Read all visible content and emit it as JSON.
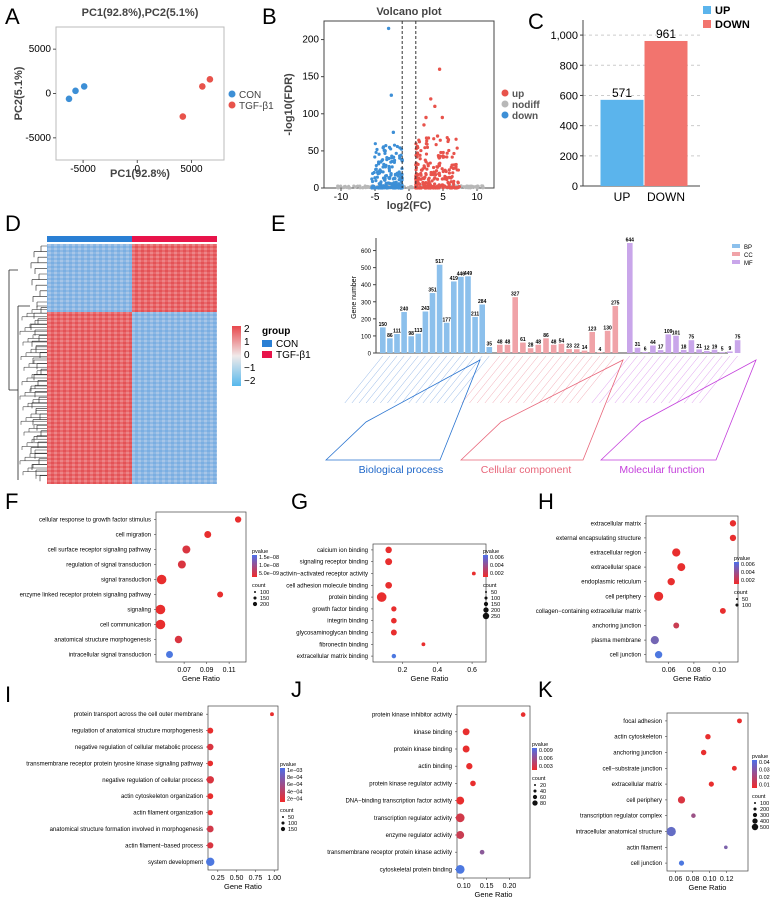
{
  "panels": {
    "A": "A",
    "B": "B",
    "C": "C",
    "D": "D",
    "E": "E",
    "F": "F",
    "G": "G",
    "H": "H",
    "I": "I",
    "J": "J",
    "K": "K"
  },
  "colors": {
    "red": "#e8312e",
    "blue": "#2a7fd4",
    "pca_red": "#e8534b",
    "pca_blue": "#3d8fd6",
    "up_bar": "#5bb4ec",
    "down_bar": "#f2746e",
    "heat_red": "#e85a5e",
    "heat_blue": "#7fb0e0",
    "bp": "#8cc0ec",
    "cc": "#f0a3a8",
    "mf": "#c9a6ea",
    "grey": "#b8b8b8"
  },
  "chart_data": [
    {
      "id": "A",
      "type": "scatter",
      "title": "PC1(92.8%),PC2(5.1%)",
      "xlabel": "PC1(92.8%)",
      "ylabel": "PC2(5.1%)",
      "xlim": [
        -7500,
        8000
      ],
      "ylim": [
        -7500,
        7500
      ],
      "xticks": [
        -5000,
        0,
        5000
      ],
      "xtick_labels": [
        "-5000",
        "0",
        "5000"
      ],
      "yticks": [
        -5000,
        0,
        5000
      ],
      "ytick_labels": [
        "-5000",
        "0",
        "5000"
      ],
      "series": [
        {
          "name": "CON",
          "color": "#3d8fd6",
          "points": [
            [
              -6300,
              -600
            ],
            [
              -5700,
              300
            ],
            [
              -4900,
              800
            ]
          ]
        },
        {
          "name": "TGF-β1",
          "color": "#e8534b",
          "points": [
            [
              4200,
              -2600
            ],
            [
              6000,
              800
            ],
            [
              6700,
              1600
            ]
          ]
        }
      ],
      "legend": [
        "CON",
        "TGF-β1"
      ]
    },
    {
      "id": "B",
      "type": "scatter",
      "title": "Volcano plot",
      "xlabel": "log2(FC)",
      "ylabel": "-log10(FDR)",
      "xlim": [
        -12.5,
        12.5
      ],
      "ylim": [
        0,
        225
      ],
      "xticks": [
        -10,
        -5,
        0,
        5,
        10
      ],
      "xtick_labels": [
        "-10",
        "-5",
        "0",
        "5",
        "10"
      ],
      "yticks": [
        0,
        50,
        100,
        150,
        200
      ],
      "ytick_labels": [
        "0",
        "50",
        "100",
        "150",
        "200"
      ],
      "thresholds_x": [
        -1,
        1
      ],
      "highlight_up": [
        [
          4.5,
          160
        ],
        [
          3.2,
          120
        ],
        [
          3.8,
          110
        ],
        [
          2.5,
          95
        ],
        [
          4.9,
          95
        ],
        [
          2.2,
          85
        ],
        [
          5.8,
          65
        ],
        [
          4.2,
          70
        ]
      ],
      "highlight_down": [
        [
          -3,
          215
        ],
        [
          -2.6,
          125
        ],
        [
          -2.3,
          75
        ],
        [
          -3.5,
          50
        ]
      ],
      "legend": [
        "up",
        "nodiff",
        "down"
      ]
    },
    {
      "id": "C",
      "type": "bar",
      "categories": [
        "UP",
        "DOWN"
      ],
      "values": [
        571,
        961
      ],
      "value_labels": [
        "571",
        "961"
      ],
      "ylim": [
        0,
        1100
      ],
      "yticks": [
        0,
        200,
        400,
        600,
        800,
        1000
      ],
      "ytick_labels": [
        "0",
        "200",
        "400",
        "600",
        "800",
        "1,000"
      ],
      "legend": [
        "UP",
        "DOWN"
      ]
    },
    {
      "id": "D",
      "type": "heatmap",
      "legend_title": "group",
      "groups": [
        "CON",
        "TGF-β1"
      ],
      "scale_ticks": [
        "2",
        "1",
        "0",
        "−1",
        "−2"
      ]
    },
    {
      "id": "E",
      "type": "bar",
      "ylabel": "Gene number",
      "ylim": [
        0,
        650
      ],
      "yticks": [
        0,
        100,
        200,
        300,
        400,
        500,
        600
      ],
      "ytick_labels": [
        "0",
        "100",
        "200",
        "300",
        "400",
        "500",
        "600"
      ],
      "legend": [
        "BP",
        "CC",
        "MF"
      ],
      "groups": [
        "Biological process",
        "Cellular component",
        "Molecular function"
      ],
      "series": [
        {
          "name": "BP",
          "values": [
            150,
            86,
            111,
            240,
            98,
            113,
            243,
            351,
            517,
            177,
            419,
            446,
            449,
            211,
            284,
            35
          ]
        },
        {
          "name": "CC",
          "values": [
            48,
            48,
            327,
            61,
            28,
            48,
            86,
            48,
            54,
            23,
            22,
            14,
            123,
            4,
            130,
            275
          ]
        },
        {
          "name": "MF",
          "values": [
            644,
            31,
            6,
            44,
            17,
            109,
            101,
            18,
            75,
            21,
            12,
            19,
            5,
            9,
            75
          ]
        }
      ],
      "value_labels": {
        "BP": [
          "150",
          "86",
          "111",
          "240",
          "98",
          "113",
          "243",
          "351",
          "517",
          "177",
          "419",
          "446",
          "449",
          "211",
          "284",
          "35"
        ],
        "CC": [
          "48",
          "48",
          "327",
          "61",
          "28",
          "48",
          "86",
          "48",
          "54",
          "23",
          "22",
          "14",
          "123",
          "4",
          "130",
          "275"
        ],
        "MF": [
          "644",
          "31",
          "6",
          "44",
          "17",
          "109",
          "101",
          "18",
          "75",
          "21",
          "12",
          "19",
          "5",
          "9",
          "75"
        ]
      }
    },
    {
      "id": "F",
      "type": "scatter",
      "xlabel": "Gene Ratio",
      "xlim": [
        0.045,
        0.125
      ],
      "xticks": [
        0.07,
        0.09,
        0.11
      ],
      "xtick_labels": [
        "0.07",
        "0.09",
        "0.11"
      ],
      "terms": [
        "cellular response to growth factor stimulus",
        "cell migration",
        "cell surface receptor signaling pathway",
        "regulation of signal transduction",
        "signal transduction",
        "enzyme linked receptor protein signaling pathway",
        "signaling",
        "cell communication",
        "anatomical structure morphogenesis",
        "intracellular signal transduction"
      ],
      "ratios": [
        0.118,
        0.091,
        0.072,
        0.068,
        0.05,
        0.102,
        0.049,
        0.049,
        0.065,
        0.057
      ],
      "counts": [
        60,
        80,
        120,
        120,
        200,
        50,
        200,
        200,
        100,
        80
      ],
      "shades": [
        0,
        0,
        0.1,
        0.1,
        0,
        0,
        0,
        0,
        0.1,
        1
      ],
      "legend_pvalue": "pvalue",
      "pvalue_ticks": [
        "1.5e−08",
        "1.0e−08",
        "5.0e−09"
      ],
      "legend_count": "count",
      "count_ticks": [
        "100",
        "150",
        "200"
      ]
    },
    {
      "id": "G",
      "type": "scatter",
      "xlabel": "Gene Ratio",
      "xlim": [
        0.03,
        0.68
      ],
      "xticks": [
        0.2,
        0.4,
        0.6
      ],
      "xtick_labels": [
        "0.2",
        "0.4",
        "0.6"
      ],
      "terms": [
        "calcium ion binding",
        "signaling receptor binding",
        "activin−activated receptor activity",
        "cell adhesion molecule binding",
        "protein binding",
        "growth factor binding",
        "integrin binding",
        "glycosaminoglycan binding",
        "fibronectin binding",
        "extracellular matrix binding"
      ],
      "ratios": [
        0.12,
        0.12,
        0.61,
        0.12,
        0.08,
        0.15,
        0.15,
        0.15,
        0.32,
        0.15
      ],
      "counts": [
        80,
        100,
        10,
        90,
        250,
        40,
        50,
        60,
        10,
        20
      ],
      "shades": [
        0,
        0,
        0,
        0,
        0,
        0,
        0,
        0,
        0,
        1
      ],
      "legend_pvalue": "pvalue",
      "pvalue_ticks": [
        "0.006",
        "0.004",
        "0.002"
      ],
      "legend_count": "count",
      "count_ticks": [
        "50",
        "100",
        "150",
        "200",
        "250"
      ]
    },
    {
      "id": "H",
      "type": "scatter",
      "xlabel": "Gene Ratio",
      "xlim": [
        0.042,
        0.115
      ],
      "xticks": [
        0.06,
        0.08,
        0.1
      ],
      "xtick_labels": [
        "0.06",
        "0.08",
        "0.10"
      ],
      "terms": [
        "extracellular matrix",
        "external encapsulating structure",
        "extracellular region",
        "extracellular space",
        "endoplasmic reticulum",
        "cell periphery",
        "collagen−containing extracellular matrix",
        "anchoring junction",
        "plasma membrane",
        "cell junction"
      ],
      "ratios": [
        0.111,
        0.111,
        0.066,
        0.07,
        0.062,
        0.052,
        0.103,
        0.066,
        0.049,
        0.052
      ],
      "counts": [
        50,
        50,
        110,
        100,
        80,
        150,
        40,
        40,
        110,
        80
      ],
      "shades": [
        0,
        0,
        0,
        0,
        0,
        0,
        0,
        0.2,
        0.75,
        1
      ],
      "legend_pvalue": "pvalue",
      "pvalue_ticks": [
        "0.006",
        "0.004",
        "0.002"
      ],
      "legend_count": "count",
      "count_ticks": [
        "50",
        "100"
      ]
    },
    {
      "id": "I",
      "type": "scatter",
      "xlabel": "Gene Ratio",
      "xlim": [
        0.12,
        1.05
      ],
      "xticks": [
        0.25,
        0.5,
        0.75,
        1.0
      ],
      "xtick_labels": [
        "0.25",
        "0.50",
        "0.75",
        "1.00"
      ],
      "terms": [
        "protein transport across the cell outer membrane",
        "regulation of anatomical structure morphogenesis",
        "negative regulation of cellular metabolic process",
        "transmembrane receptor protein tyrosine kinase signaling pathway",
        "negative regulation of cellular process",
        "actin cytoskeleton organization",
        "actin filament organization",
        "anatomical structure formation involved in morphogenesis",
        "actin filament−based process",
        "system development"
      ],
      "ratios": [
        0.97,
        0.15,
        0.15,
        0.15,
        0.15,
        0.15,
        0.15,
        0.15,
        0.15,
        0.15
      ],
      "counts": [
        10,
        60,
        80,
        50,
        120,
        60,
        40,
        90,
        70,
        170
      ],
      "shades": [
        0,
        0,
        0.1,
        0,
        0.1,
        0,
        0,
        0.15,
        0.1,
        1
      ],
      "legend_pvalue": "pvalue",
      "pvalue_ticks": [
        "1e−03",
        "8e−04",
        "6e−04",
        "4e−04",
        "2e−04"
      ],
      "legend_count": "count",
      "count_ticks": [
        "50",
        "100",
        "150"
      ]
    },
    {
      "id": "J",
      "type": "scatter",
      "xlabel": "Gene Ratio",
      "xlim": [
        0.085,
        0.245
      ],
      "xticks": [
        0.1,
        0.15,
        0.2
      ],
      "xtick_labels": [
        "0.10",
        "0.15",
        "0.20"
      ],
      "terms": [
        "protein kinase inhibitor activity",
        "kinase binding",
        "protein kinase binding",
        "actin binding",
        "protein kinase regulator activity",
        "DNA−binding transcription factor activity",
        "transcription regulator activity",
        "enzyme regulator activity",
        "transmembrane receptor protein kinase activity",
        "cytoskeletal protein binding"
      ],
      "ratios": [
        0.23,
        0.105,
        0.105,
        0.112,
        0.12,
        0.092,
        0.092,
        0.092,
        0.14,
        0.092
      ],
      "counts": [
        10,
        40,
        40,
        30,
        20,
        60,
        80,
        60,
        10,
        80
      ],
      "shades": [
        0,
        0,
        0,
        0,
        0,
        0,
        0.15,
        0.2,
        0.6,
        1
      ],
      "legend_pvalue": "pvalue",
      "pvalue_ticks": [
        "0.009",
        "0.006",
        "0.003"
      ],
      "legend_count": "count",
      "count_ticks": [
        "20",
        "40",
        "60",
        "80"
      ]
    },
    {
      "id": "K",
      "type": "scatter",
      "xlabel": "Gene Ratio",
      "xlim": [
        0.05,
        0.145
      ],
      "xticks": [
        0.06,
        0.08,
        0.1,
        0.12
      ],
      "xtick_labels": [
        "0.06",
        "0.08",
        "0.10",
        "0.12"
      ],
      "terms": [
        "focal adhesion",
        "actin cytoskeleton",
        "anchoring junction",
        "cell−substrate junction",
        "extracellular matrix",
        "cell periphery",
        "transcription regulator complex",
        "intracellular anatomical structure",
        "actin filament",
        "cell junction"
      ],
      "ratios": [
        0.135,
        0.098,
        0.093,
        0.129,
        0.102,
        0.067,
        0.081,
        0.055,
        0.119,
        0.067
      ],
      "counts": [
        80,
        120,
        120,
        80,
        100,
        300,
        60,
        600,
        20,
        100
      ],
      "shades": [
        0,
        0,
        0,
        0,
        0,
        0.1,
        0.5,
        0.85,
        0.7,
        1
      ],
      "legend_pvalue": "pvalue",
      "pvalue_ticks": [
        "0.04",
        "0.03",
        "0.02",
        "0.01"
      ],
      "legend_count": "count",
      "count_ticks": [
        "100",
        "200",
        "300",
        "400",
        "500"
      ]
    }
  ]
}
